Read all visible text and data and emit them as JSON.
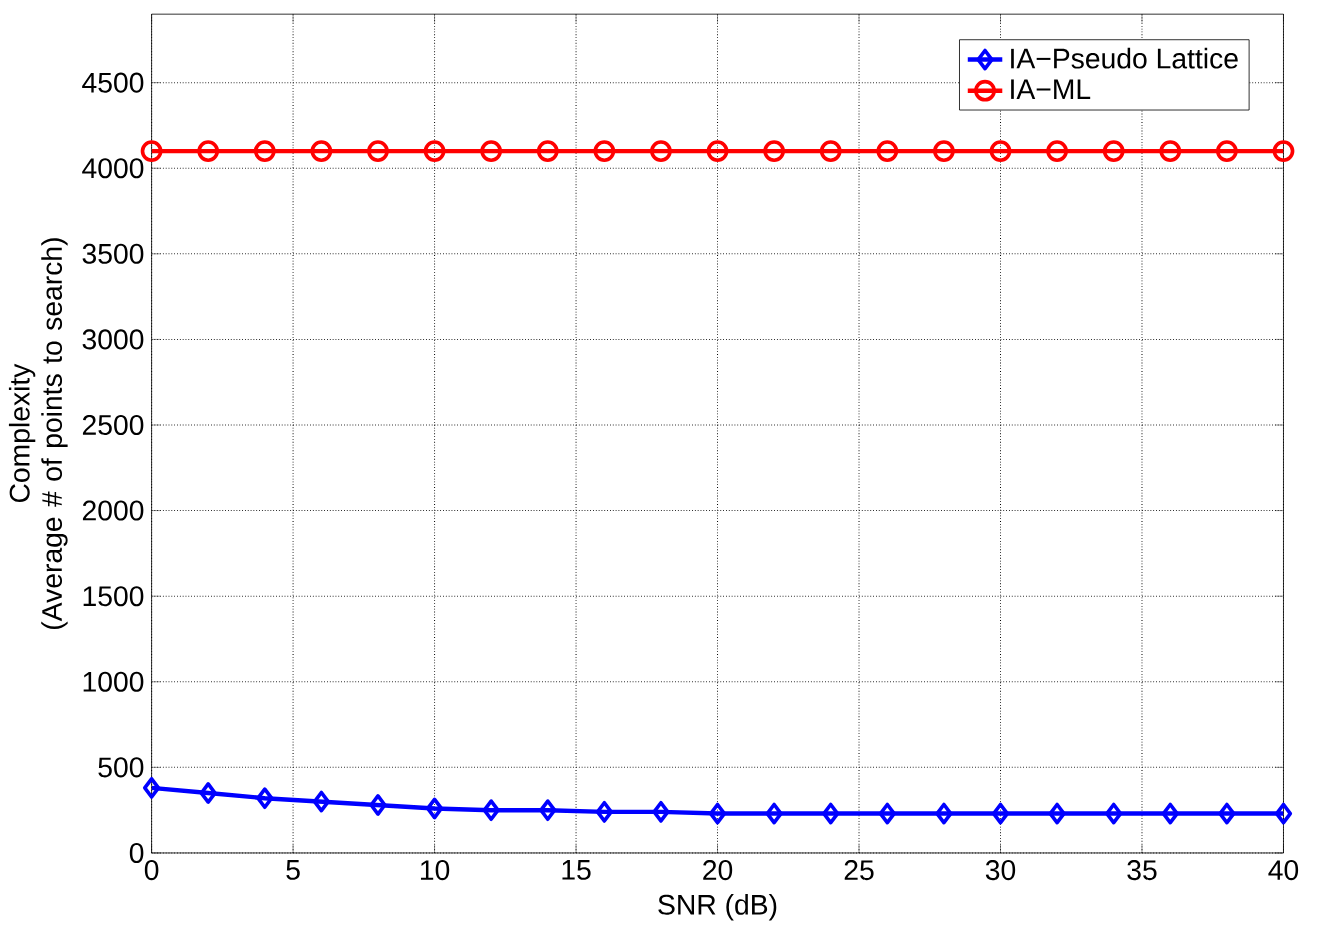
{
  "chart_data": {
    "type": "line",
    "xlabel": "SNR (dB)",
    "ylabel": "Complexity\n(Average # of points to search)",
    "x": [
      0,
      2,
      4,
      6,
      8,
      10,
      12,
      14,
      16,
      18,
      20,
      22,
      24,
      26,
      28,
      30,
      32,
      34,
      36,
      38,
      40
    ],
    "series": [
      {
        "name": "IA−Pseudo Lattice",
        "color": "#0000ff",
        "marker": "diamond",
        "values": [
          380,
          350,
          320,
          300,
          280,
          260,
          250,
          250,
          240,
          240,
          230,
          230,
          230,
          230,
          230,
          230,
          230,
          230,
          230,
          230,
          230
        ]
      },
      {
        "name": "IA−ML",
        "color": "#ff0000",
        "marker": "circle",
        "values": [
          4100,
          4100,
          4100,
          4100,
          4100,
          4100,
          4100,
          4100,
          4100,
          4100,
          4100,
          4100,
          4100,
          4100,
          4100,
          4100,
          4100,
          4100,
          4100,
          4100,
          4100
        ]
      }
    ],
    "xlim": [
      0,
      40
    ],
    "xticks": [
      0,
      5,
      10,
      15,
      20,
      25,
      30,
      35,
      40
    ],
    "ylim": [
      0,
      4900
    ],
    "yticks": [
      0,
      500,
      1000,
      1500,
      2000,
      2500,
      3000,
      3500,
      4000,
      4500
    ],
    "grid": true,
    "legend": "top right",
    "line_style": "solid"
  }
}
